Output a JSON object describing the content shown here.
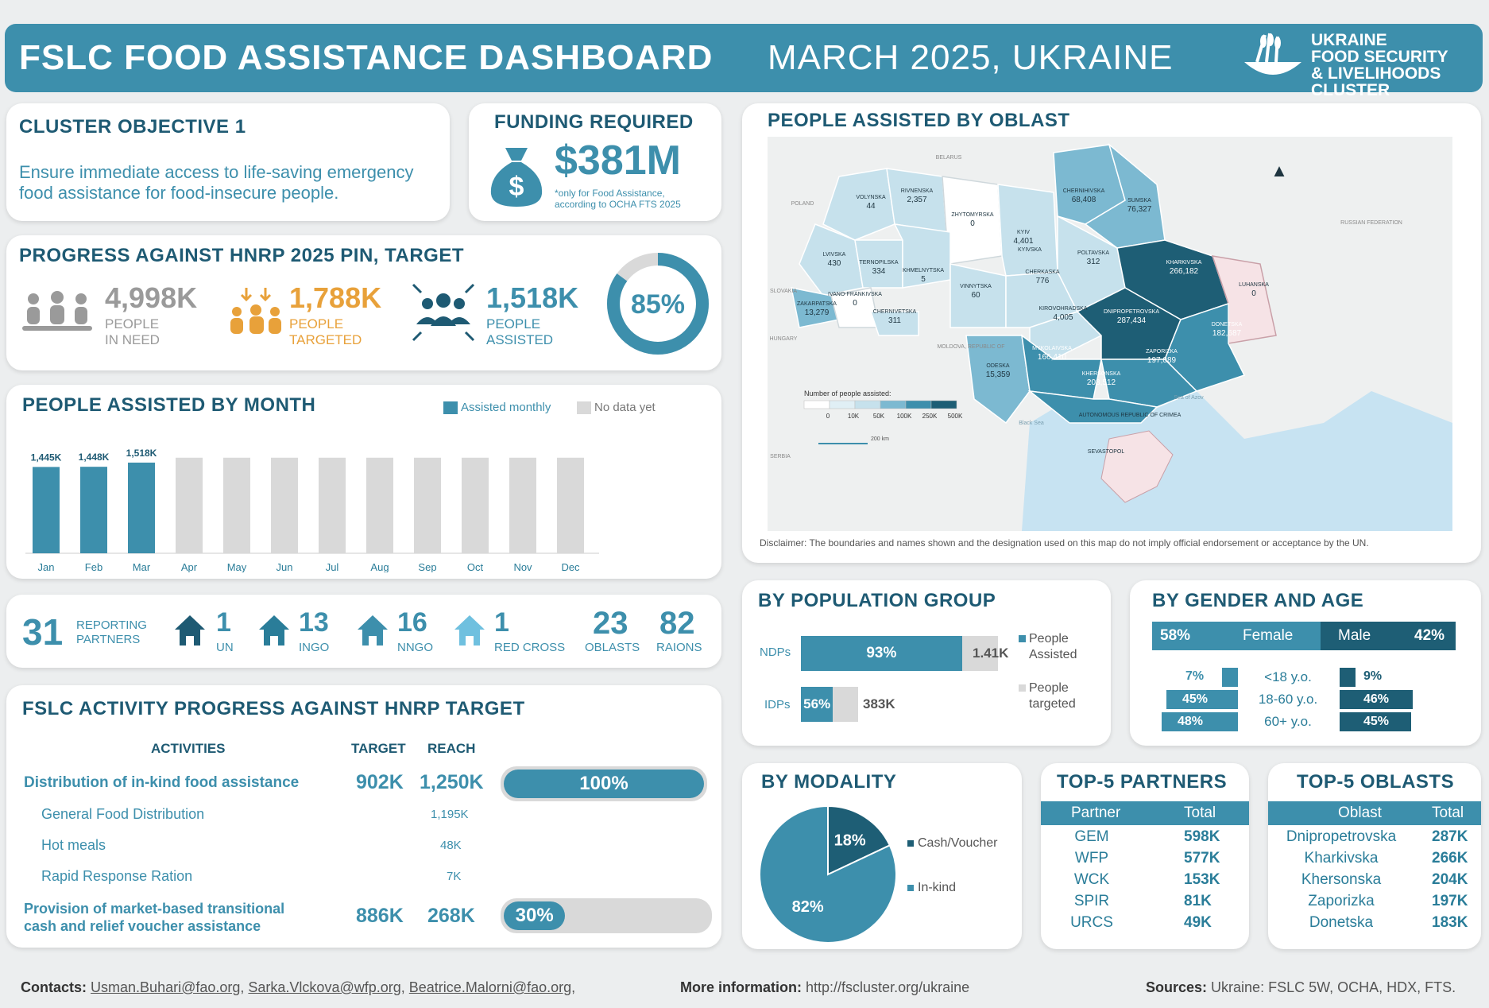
{
  "header": {
    "title": "FSLC FOOD ASSISTANCE DASHBOARD",
    "date": "MARCH 2025, UKRAINE",
    "logo_line1": "UKRAINE",
    "logo_line2": "FOOD SECURITY",
    "logo_line3": "& LIVELIHOODS CLUSTER"
  },
  "objective": {
    "title": "CLUSTER OBJECTIVE 1",
    "text_line1": "Ensure immediate access to life-saving emergency",
    "text_line2": "food assistance for food-insecure people."
  },
  "funding": {
    "title": "FUNDING REQUIRED",
    "amount": "$381M",
    "note_line1": "*only for Food Assistance,",
    "note_line2": "according to OCHA FTS 2025"
  },
  "progress": {
    "title": "PROGRESS AGAINST HNRP 2025 PIN, TARGET",
    "pin_value": "4,998K",
    "pin_label1": "PEOPLE",
    "pin_label2": "IN NEED",
    "target_value": "1,788K",
    "target_label1": "PEOPLE",
    "target_label2": "TARGETED",
    "assisted_value": "1,518K",
    "assisted_label1": "PEOPLE",
    "assisted_label2": "ASSISTED",
    "percent_label": "85%",
    "percent": 0.85
  },
  "by_month": {
    "title": "PEOPLE ASSISTED BY MONTH",
    "legend_assisted": "Assisted monthly",
    "legend_nodata": "No data yet"
  },
  "chart_data": [
    {
      "type": "bar",
      "title": "PEOPLE ASSISTED BY MONTH",
      "categories": [
        "Jan",
        "Feb",
        "Mar",
        "Apr",
        "May",
        "Jun",
        "Jul",
        "Aug",
        "Sep",
        "Oct",
        "Nov",
        "Dec"
      ],
      "series": [
        {
          "name": "Assisted monthly",
          "values": [
            1445,
            1448,
            1518,
            null,
            null,
            null,
            null,
            null,
            null,
            null,
            null,
            null
          ],
          "labels": [
            "1,445K",
            "1,448K",
            "1,518K"
          ]
        },
        {
          "name": "No data yet",
          "values": [
            null,
            null,
            null,
            1600,
            1600,
            1600,
            1600,
            1600,
            1600,
            1600,
            1600,
            1600
          ]
        }
      ],
      "ylim": [
        0,
        1650
      ]
    },
    {
      "type": "bar",
      "title": "BY POPULATION GROUP",
      "categories": [
        "NDPs",
        "IDPs"
      ],
      "series": [
        {
          "name": "People Assisted",
          "values": [
            93,
            56
          ],
          "labels": [
            "93%",
            "56%"
          ]
        },
        {
          "name": "People targeted",
          "labels": [
            "1.41K",
            "383K"
          ]
        }
      ]
    },
    {
      "type": "bar",
      "title": "BY GENDER AND AGE",
      "categories": [
        "<18 y.o.",
        "18-60 y.o.",
        "60+ y.o."
      ],
      "series": [
        {
          "name": "Female",
          "values": [
            7,
            45,
            48
          ]
        },
        {
          "name": "Male",
          "values": [
            9,
            46,
            45
          ]
        }
      ],
      "totals": {
        "female": 58,
        "male": 42
      }
    },
    {
      "type": "pie",
      "title": "BY MODALITY",
      "categories": [
        "Cash/Voucher",
        "In-kind"
      ],
      "values": [
        18,
        82
      ]
    }
  ],
  "partners": {
    "count": "31",
    "count_label1": "REPORTING",
    "count_label2": "PARTNERS",
    "un": "1",
    "un_label": "UN",
    "ingo": "13",
    "ingo_label": "INGO",
    "nngo": "16",
    "nngo_label": "NNGO",
    "rc": "1",
    "rc_label": "RED CROSS",
    "oblasts": "23",
    "oblasts_label": "OBLASTS",
    "raions": "82",
    "raions_label": "RAIONS"
  },
  "activity": {
    "title": "FSLC ACTIVITY PROGRESS AGAINST HNRP TARGET",
    "col_activities": "ACTIVITIES",
    "col_target": "TARGET",
    "col_reach": "REACH",
    "rows": [
      {
        "name": "Distribution of in-kind food assistance",
        "target": "902K",
        "reach": "1,250K",
        "pct_label": "100%",
        "pct": 1.0
      },
      {
        "name": "General Food Distribution",
        "reach": "1,195K"
      },
      {
        "name": "Hot meals",
        "reach": "48K"
      },
      {
        "name": "Rapid Response Ration",
        "reach": "7K"
      },
      {
        "name_line1": "Provision of market-based transitional",
        "name_line2": "cash and relief voucher assistance",
        "target": "886K",
        "reach": "268K",
        "pct_label": "30%",
        "pct": 0.3
      }
    ]
  },
  "map": {
    "title": "PEOPLE ASSISTED BY OBLAST",
    "disclaimer": "Disclaimer: The boundaries and names shown and the designation used on this map do not imply official endorsement or acceptance by the UN.",
    "legend_title": "Number of people assisted:",
    "legend_ticks": [
      "0",
      "10K",
      "50K",
      "100K",
      "250K",
      "500K"
    ],
    "scale": "200 km",
    "countries": [
      "BELARUS",
      "POLAND",
      "RUSSIAN FEDERATION",
      "SLOVAKIA",
      "HUNGARY",
      "MOLDOVA, REPUBLIC OF",
      "SERBIA"
    ],
    "seas": [
      "Black Sea",
      "Sea of Azov"
    ],
    "labels": [
      {
        "name": "VOLYNSKA",
        "value": "44"
      },
      {
        "name": "RIVNENSKA",
        "value": "2,357"
      },
      {
        "name": "ZHYTOMYRSKA",
        "value": "0"
      },
      {
        "name": "KYIV",
        "value": "4,401"
      },
      {
        "name": "KYIVSKA",
        "value": ""
      },
      {
        "name": "CHERNIHIVSKA",
        "value": "68,408"
      },
      {
        "name": "SUMSKA",
        "value": "76,327"
      },
      {
        "name": "LVIVSKA",
        "value": "430"
      },
      {
        "name": "TERNOPILSKA",
        "value": "334"
      },
      {
        "name": "KHMELNYTSKA",
        "value": "5"
      },
      {
        "name": "VINNYTSKA",
        "value": "60"
      },
      {
        "name": "CHERKASKA",
        "value": "776"
      },
      {
        "name": "POLTAVSKA",
        "value": "312"
      },
      {
        "name": "KHARKIVSKA",
        "value": "266,182"
      },
      {
        "name": "LUHANSKA",
        "value": "0"
      },
      {
        "name": "ZAKARPATSKA",
        "value": "13,279"
      },
      {
        "name": "IVANO-FRANKIVSKA",
        "value": "0"
      },
      {
        "name": "CHERNIVETSKA",
        "value": "311"
      },
      {
        "name": "KIROVOHRADSKA",
        "value": "4,005"
      },
      {
        "name": "DNIPROPETROVSKA",
        "value": "287,434"
      },
      {
        "name": "DONETSKA",
        "value": "182,687"
      },
      {
        "name": "ODESKA",
        "value": "15,359"
      },
      {
        "name": "MYKOLAIVSKA",
        "value": "166,410"
      },
      {
        "name": "ZAPORIZKA",
        "value": "197,089"
      },
      {
        "name": "KHERSONSKA",
        "value": "203,512"
      },
      {
        "name": "AUTONOMOUS REPUBLIC OF CRIMEA",
        "value": ""
      },
      {
        "name": "SEVASTOPOL",
        "value": ""
      }
    ]
  },
  "population": {
    "title": "BY POPULATION GROUP",
    "ndps_label": "NDPs",
    "idps_label": "IDPs",
    "ndps_pct": "93%",
    "ndps_target": "1.41K",
    "idps_pct": "56%",
    "idps_target": "383K",
    "legend_assisted1": "People",
    "legend_assisted2": "Assisted",
    "legend_targeted1": "People",
    "legend_targeted2": "targeted"
  },
  "gender": {
    "title": "BY GENDER AND AGE",
    "female_pct": "58%",
    "female_label": "Female",
    "male_label": "Male",
    "male_pct": "42%",
    "rows": [
      {
        "age": "<18 y.o.",
        "f": "7%",
        "m": "9%",
        "fv": 7,
        "mv": 9
      },
      {
        "age": "18-60 y.o.",
        "f": "45%",
        "m": "46%",
        "fv": 45,
        "mv": 46
      },
      {
        "age": "60+ y.o.",
        "f": "48%",
        "m": "45%",
        "fv": 48,
        "mv": 45
      }
    ]
  },
  "modality": {
    "title": "BY MODALITY",
    "cash_label": "Cash/Voucher",
    "inkind_label": "In-kind",
    "cash_pct": "18%",
    "inkind_pct": "82%"
  },
  "top_partners": {
    "title": "TOP-5 PARTNERS",
    "col1": "Partner",
    "col2": "Total",
    "rows": [
      {
        "name": "GEM",
        "total": "598K"
      },
      {
        "name": "WFP",
        "total": "577K"
      },
      {
        "name": "WCK",
        "total": "153K"
      },
      {
        "name": "SPIR",
        "total": "81K"
      },
      {
        "name": "URCS",
        "total": "49K"
      }
    ]
  },
  "top_oblasts": {
    "title": "TOP-5 OBLASTS",
    "col1": "Oblast",
    "col2": "Total",
    "rows": [
      {
        "name": "Dnipropetrovska",
        "total": "287K"
      },
      {
        "name": "Kharkivska",
        "total": "266K"
      },
      {
        "name": "Khersonska",
        "total": "204K"
      },
      {
        "name": "Zaporizka",
        "total": "197K"
      },
      {
        "name": "Donetska",
        "total": "183K"
      }
    ]
  },
  "footer": {
    "contacts_label": "Contacts:",
    "email1": "Usman.Buhari@fao.org",
    "email2": "Sarka.Vlckova@wfp.org",
    "email3": "Beatrice.Malorni@fao.org",
    "more_label": "More information:",
    "more_url": "http://fscluster.org/ukraine",
    "sources_label": "Sources:",
    "sources": "Ukraine: FSLC 5W, OCHA, HDX, FTS."
  }
}
